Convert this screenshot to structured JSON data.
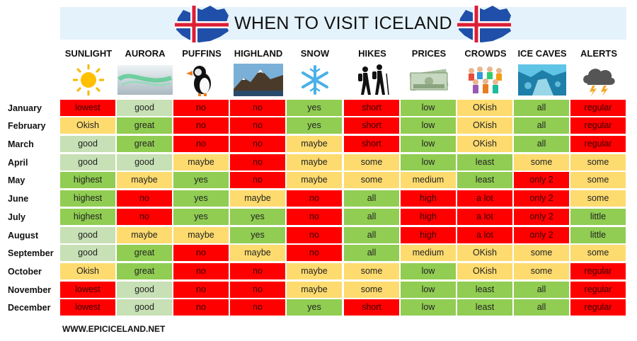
{
  "title": "WHEN TO VISIT ICELAND",
  "footer": "WWW.EPICICELAND.NET",
  "colors": {
    "red": "#fe0000",
    "light_green": "#c7e0b5",
    "green": "#90cd52",
    "yellow": "#fedb6f",
    "banner": "#e4f2fb"
  },
  "columns": [
    {
      "label": "SUNLIGHT",
      "icon": "sun-icon"
    },
    {
      "label": "AURORA",
      "icon": "aurora-icon"
    },
    {
      "label": "PUFFINS",
      "icon": "puffin-icon"
    },
    {
      "label": "HIGHLAND",
      "icon": "mountain-icon"
    },
    {
      "label": "SNOW",
      "icon": "snowflake-icon"
    },
    {
      "label": "HIKES",
      "icon": "hikers-icon"
    },
    {
      "label": "PRICES",
      "icon": "money-icon"
    },
    {
      "label": "CROWDS",
      "icon": "crowd-icon"
    },
    {
      "label": "ICE CAVES",
      "icon": "ice-cave-icon"
    },
    {
      "label": "ALERTS",
      "icon": "storm-cloud-icon"
    }
  ],
  "rows": [
    {
      "month": "January",
      "cells": [
        [
          "lowest",
          "red"
        ],
        [
          "good",
          "lgreen"
        ],
        [
          "no",
          "red"
        ],
        [
          "no",
          "red"
        ],
        [
          "yes",
          "green"
        ],
        [
          "short",
          "red"
        ],
        [
          "low",
          "green"
        ],
        [
          "OKish",
          "yellow"
        ],
        [
          "all",
          "green"
        ],
        [
          "regular",
          "red"
        ]
      ]
    },
    {
      "month": "February",
      "cells": [
        [
          "Okish",
          "yellow"
        ],
        [
          "great",
          "green"
        ],
        [
          "no",
          "red"
        ],
        [
          "no",
          "red"
        ],
        [
          "yes",
          "green"
        ],
        [
          "short",
          "red"
        ],
        [
          "low",
          "green"
        ],
        [
          "OKish",
          "yellow"
        ],
        [
          "all",
          "green"
        ],
        [
          "regular",
          "red"
        ]
      ]
    },
    {
      "month": "March",
      "cells": [
        [
          "good",
          "lgreen"
        ],
        [
          "great",
          "green"
        ],
        [
          "no",
          "red"
        ],
        [
          "no",
          "red"
        ],
        [
          "maybe",
          "yellow"
        ],
        [
          "short",
          "red"
        ],
        [
          "low",
          "green"
        ],
        [
          "OKish",
          "yellow"
        ],
        [
          "all",
          "green"
        ],
        [
          "regular",
          "red"
        ]
      ]
    },
    {
      "month": "April",
      "cells": [
        [
          "good",
          "lgreen"
        ],
        [
          "good",
          "lgreen"
        ],
        [
          "maybe",
          "yellow"
        ],
        [
          "no",
          "red"
        ],
        [
          "maybe",
          "yellow"
        ],
        [
          "some",
          "yellow"
        ],
        [
          "low",
          "green"
        ],
        [
          "least",
          "green"
        ],
        [
          "some",
          "yellow"
        ],
        [
          "some",
          "yellow"
        ]
      ]
    },
    {
      "month": "May",
      "cells": [
        [
          "highest",
          "green"
        ],
        [
          "maybe",
          "yellow"
        ],
        [
          "yes",
          "green"
        ],
        [
          "no",
          "red"
        ],
        [
          "maybe",
          "yellow"
        ],
        [
          "some",
          "yellow"
        ],
        [
          "medium",
          "yellow"
        ],
        [
          "least",
          "green"
        ],
        [
          "only 2",
          "red"
        ],
        [
          "some",
          "yellow"
        ]
      ]
    },
    {
      "month": "June",
      "cells": [
        [
          "highest",
          "green"
        ],
        [
          "no",
          "red"
        ],
        [
          "yes",
          "green"
        ],
        [
          "maybe",
          "yellow"
        ],
        [
          "no",
          "red"
        ],
        [
          "all",
          "green"
        ],
        [
          "high",
          "red"
        ],
        [
          "a lot",
          "red"
        ],
        [
          "only 2",
          "red"
        ],
        [
          "some",
          "yellow"
        ]
      ]
    },
    {
      "month": "July",
      "cells": [
        [
          "highest",
          "green"
        ],
        [
          "no",
          "red"
        ],
        [
          "yes",
          "green"
        ],
        [
          "yes",
          "green"
        ],
        [
          "no",
          "red"
        ],
        [
          "all",
          "green"
        ],
        [
          "high",
          "red"
        ],
        [
          "a lot",
          "red"
        ],
        [
          "only 2",
          "red"
        ],
        [
          "little",
          "green"
        ]
      ]
    },
    {
      "month": "August",
      "cells": [
        [
          "good",
          "lgreen"
        ],
        [
          "maybe",
          "yellow"
        ],
        [
          "maybe",
          "yellow"
        ],
        [
          "yes",
          "green"
        ],
        [
          "no",
          "red"
        ],
        [
          "all",
          "green"
        ],
        [
          "high",
          "red"
        ],
        [
          "a lot",
          "red"
        ],
        [
          "only 2",
          "red"
        ],
        [
          "little",
          "green"
        ]
      ]
    },
    {
      "month": "September",
      "cells": [
        [
          "good",
          "lgreen"
        ],
        [
          "great",
          "green"
        ],
        [
          "no",
          "red"
        ],
        [
          "maybe",
          "yellow"
        ],
        [
          "no",
          "red"
        ],
        [
          "all",
          "green"
        ],
        [
          "medium",
          "yellow"
        ],
        [
          "OKish",
          "yellow"
        ],
        [
          "some",
          "yellow"
        ],
        [
          "some",
          "yellow"
        ]
      ]
    },
    {
      "month": "October",
      "cells": [
        [
          "Okish",
          "yellow"
        ],
        [
          "great",
          "green"
        ],
        [
          "no",
          "red"
        ],
        [
          "no",
          "red"
        ],
        [
          "maybe",
          "yellow"
        ],
        [
          "some",
          "yellow"
        ],
        [
          "low",
          "green"
        ],
        [
          "OKish",
          "yellow"
        ],
        [
          "some",
          "yellow"
        ],
        [
          "regular",
          "red"
        ]
      ]
    },
    {
      "month": "November",
      "cells": [
        [
          "lowest",
          "red"
        ],
        [
          "good",
          "lgreen"
        ],
        [
          "no",
          "red"
        ],
        [
          "no",
          "red"
        ],
        [
          "maybe",
          "yellow"
        ],
        [
          "some",
          "yellow"
        ],
        [
          "low",
          "green"
        ],
        [
          "least",
          "green"
        ],
        [
          "all",
          "green"
        ],
        [
          "regular",
          "red"
        ]
      ]
    },
    {
      "month": "December",
      "cells": [
        [
          "lowest",
          "red"
        ],
        [
          "good",
          "lgreen"
        ],
        [
          "no",
          "red"
        ],
        [
          "no",
          "red"
        ],
        [
          "yes",
          "green"
        ],
        [
          "short",
          "red"
        ],
        [
          "low",
          "green"
        ],
        [
          "least",
          "green"
        ],
        [
          "all",
          "green"
        ],
        [
          "regular",
          "red"
        ]
      ]
    }
  ]
}
